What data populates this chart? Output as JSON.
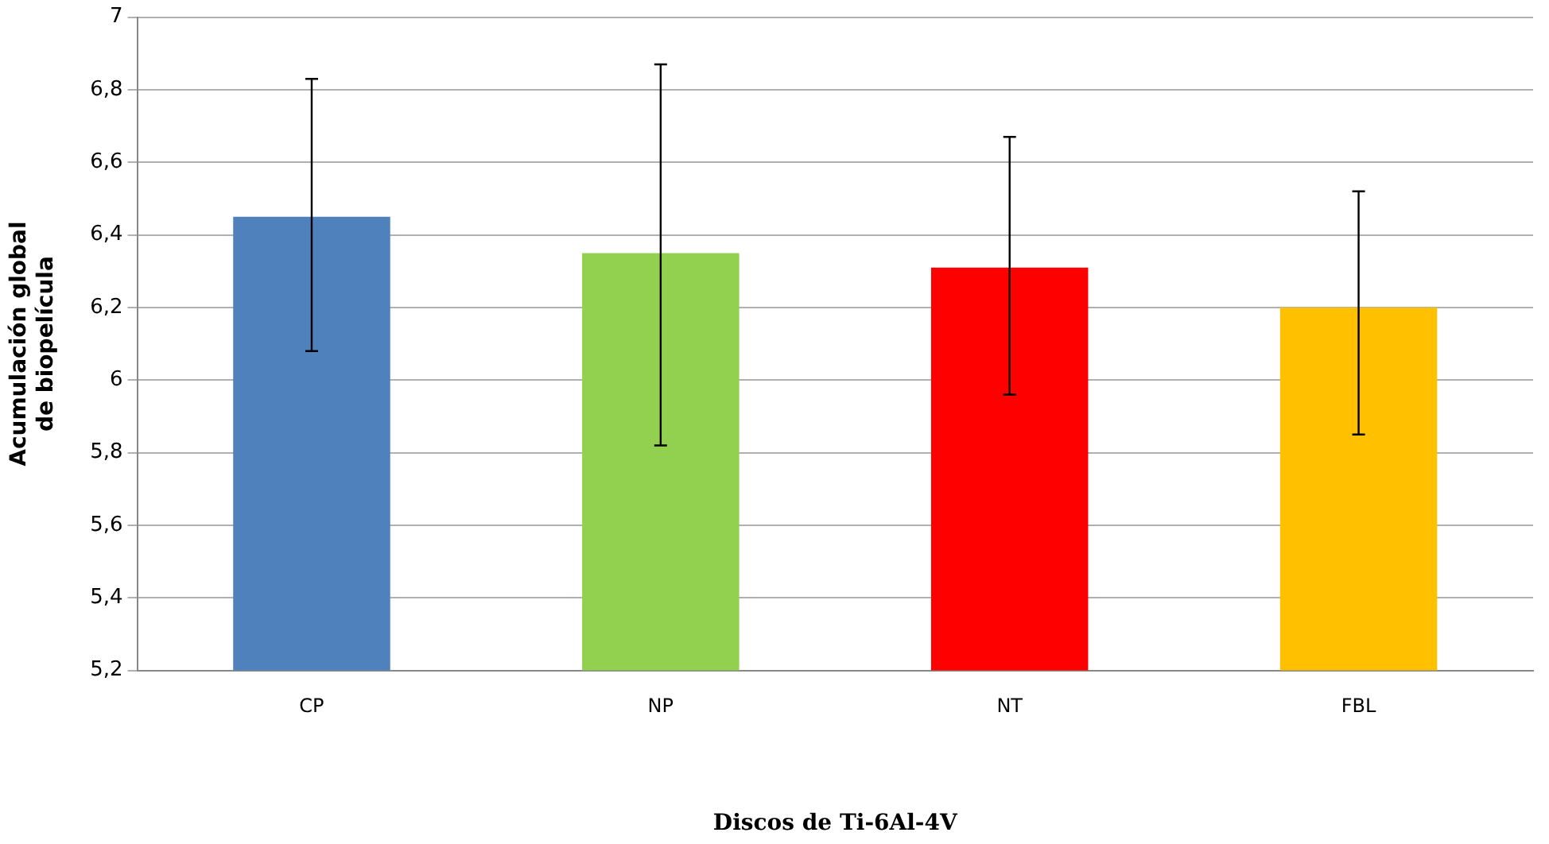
{
  "chart_data": {
    "type": "bar",
    "xlabel": "Discos de Ti-6Al-4V",
    "ylabel": "Acumulación global de biopelícula",
    "categories": [
      "CP",
      "NP",
      "NT",
      "FBL"
    ],
    "values": [
      6.45,
      6.35,
      6.31,
      6.2
    ],
    "colors": [
      "#4f81bd",
      "#92d050",
      "#ff0000",
      "#ffc000"
    ],
    "errors": [
      [
        6.08,
        6.83
      ],
      [
        5.82,
        6.87
      ],
      [
        5.96,
        6.67
      ],
      [
        5.85,
        6.52
      ]
    ],
    "ylim": [
      5.2,
      7
    ],
    "yticks": [
      {
        "value": 5.2,
        "label": "5,2"
      },
      {
        "value": 5.4,
        "label": "5,4"
      },
      {
        "value": 5.6,
        "label": "5,6"
      },
      {
        "value": 5.8,
        "label": "5,8"
      },
      6,
      {
        "value": 6.2,
        "label": "6,2"
      },
      {
        "value": 6.4,
        "label": "6,4"
      },
      {
        "value": 6.6,
        "label": "6,6"
      },
      {
        "value": 6.8,
        "label": "6,8"
      },
      7
    ],
    "grid": "y",
    "legend": false
  }
}
